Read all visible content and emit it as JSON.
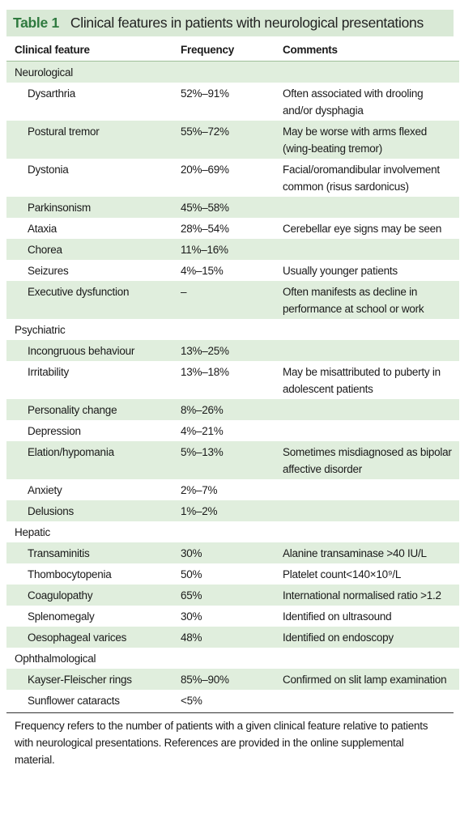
{
  "title": {
    "label": "Table 1",
    "text": "Clinical features in patients with neurological presentations"
  },
  "header": [
    "Clinical feature",
    "Frequency",
    "Comments"
  ],
  "sections": [
    {
      "name": "Neurological",
      "rows": [
        {
          "feature": "Dysarthria",
          "frequency": "52%–91%",
          "comment": "Often associated with drooling and/or dysphagia"
        },
        {
          "feature": "Postural tremor",
          "frequency": "55%–72%",
          "comment": "May be worse with arms flexed (wing-beating tremor)"
        },
        {
          "feature": "Dystonia",
          "frequency": "20%–69%",
          "comment": "Facial/oromandibular involvement common (risus sardonicus)"
        },
        {
          "feature": "Parkinsonism",
          "frequency": "45%–58%"
        },
        {
          "feature": "Ataxia",
          "frequency": "28%–54%",
          "comment": "Cerebellar eye signs may be seen"
        },
        {
          "feature": "Chorea",
          "frequency": "11%–16%"
        },
        {
          "feature": "Seizures",
          "frequency": "4%–15%",
          "comment": "Usually younger patients"
        },
        {
          "feature": "Executive dysfunction",
          "frequency": "–",
          "comment": "Often manifests as decline in performance at school or work"
        }
      ]
    },
    {
      "name": "Psychiatric",
      "rows": [
        {
          "feature": "Incongruous behaviour",
          "frequency": "13%–25%"
        },
        {
          "feature": "Irritability",
          "frequency": "13%–18%",
          "comment": "May be misattributed to puberty in adolescent patients"
        },
        {
          "feature": "Personality change",
          "frequency": "8%–26%"
        },
        {
          "feature": "Depression",
          "frequency": "4%–21%"
        },
        {
          "feature": "Elation/hypomania",
          "frequency": "5%–13%",
          "comment": "Sometimes misdiagnosed as bipolar affective disorder"
        },
        {
          "feature": "Anxiety",
          "frequency": "2%–7%"
        },
        {
          "feature": "Delusions",
          "frequency": "1%–2%"
        }
      ]
    },
    {
      "name": "Hepatic",
      "rows": [
        {
          "feature": "Transaminitis",
          "frequency": "30%",
          "comment": "Alanine transaminase >40 IU/L"
        },
        {
          "feature": "Thombocytopenia",
          "frequency": "50%",
          "comment": "Platelet count<140×10⁹/L"
        },
        {
          "feature": "Coagulopathy",
          "frequency": "65%",
          "comment": "International normalised ratio >1.2"
        },
        {
          "feature": "Splenomegaly",
          "frequency": "30%",
          "comment": "Identified on ultrasound"
        },
        {
          "feature": "Oesophageal varices",
          "frequency": "48%",
          "comment": "Identified on endoscopy"
        }
      ]
    },
    {
      "name": "Ophthalmological",
      "rows": [
        {
          "feature": "Kayser-Fleischer rings",
          "frequency": "85%–90%",
          "comment": "Confirmed on slit lamp examination"
        },
        {
          "feature": "Sunflower cataracts",
          "frequency": "<5%"
        }
      ]
    }
  ],
  "footnote": "Frequency refers to the number of patients with a given clinical feature relative to patients with neurological presentations. References are provided in the online supplemental material."
}
